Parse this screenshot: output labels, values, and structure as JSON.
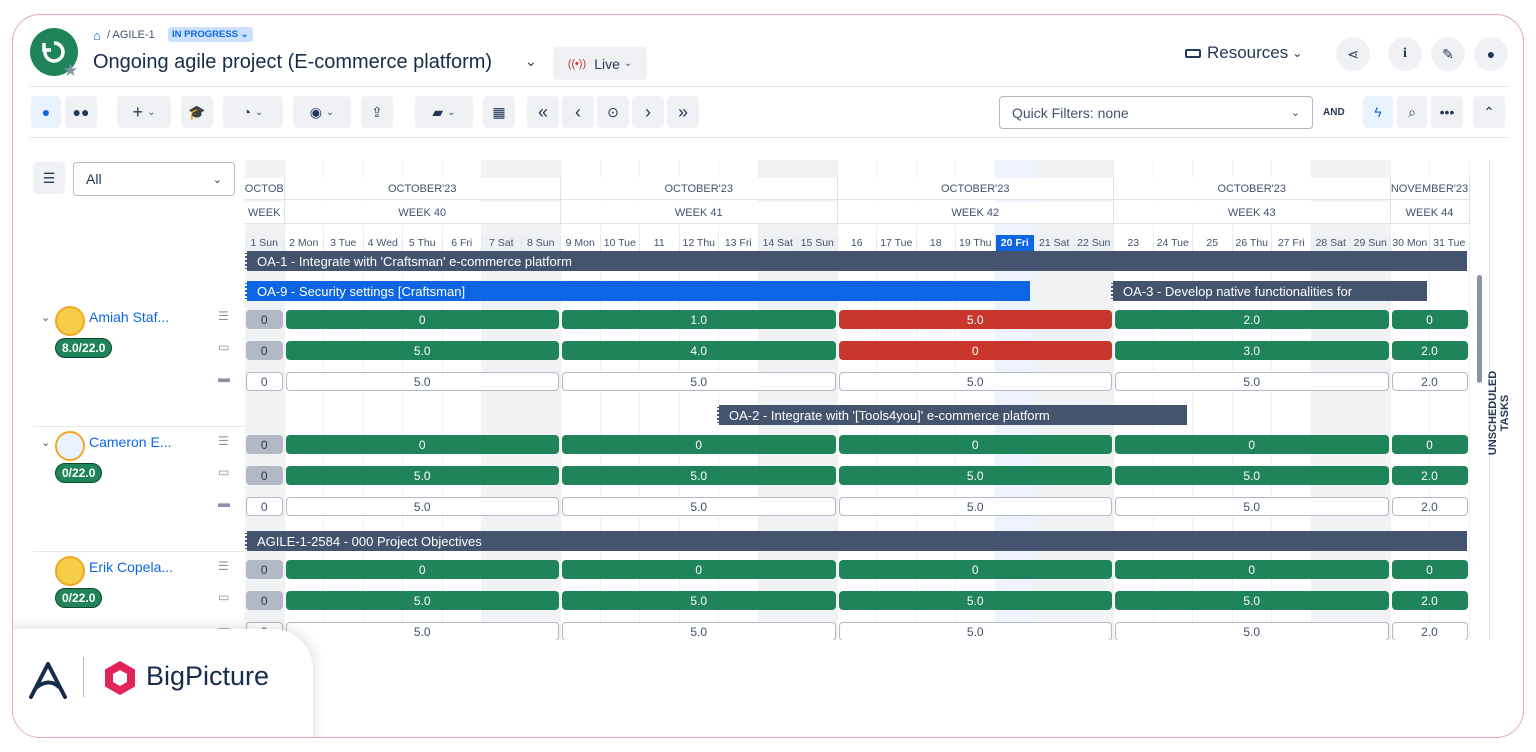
{
  "breadcrumb": {
    "project": "AGILE-1",
    "status": "IN PROGRESS"
  },
  "title": "Ongoing agile project (E-commerce platform)",
  "live": "Live",
  "resources": "Resources",
  "quick_filters": "Quick Filters: none",
  "and_label": "AND",
  "filter_select": "All",
  "unscheduled": "UNSCHEDULED TASKS",
  "brand": "BigPicture",
  "months": [
    {
      "label": "OCTOB"
    },
    {
      "label": "OCTOBER'23"
    },
    {
      "label": "OCTOBER'23"
    },
    {
      "label": "OCTOBER'23"
    },
    {
      "label": "OCTOBER'23"
    },
    {
      "label": "NOVEMBER'23"
    }
  ],
  "weeks": [
    {
      "label": "WEEK"
    },
    {
      "label": "WEEK 40"
    },
    {
      "label": "WEEK 41"
    },
    {
      "label": "WEEK 42"
    },
    {
      "label": "WEEK 43"
    },
    {
      "label": "WEEK 44"
    }
  ],
  "days": [
    "1 Sun",
    "2 Mon",
    "3 Tue",
    "4 Wed",
    "5 Thu",
    "6 Fri",
    "7 Sat",
    "8 Sun",
    "9 Mon",
    "10 Tue",
    "11",
    "12 Thu",
    "13 Fri",
    "14 Sat",
    "15 Sun",
    "16",
    "17 Tue",
    "18",
    "19 Thu",
    "20 Fri",
    "21 Sat",
    "22 Sun",
    "23",
    "24 Tue",
    "25",
    "26 Thu",
    "27 Fri",
    "28 Sat",
    "29 Sun",
    "30 Mon",
    "31 Tue"
  ],
  "tasks": {
    "oa1": "OA-1 - Integrate with 'Craftsman' e-commerce platform",
    "oa9": "OA-9 - Security settings [Craftsman]",
    "oa3": "OA-3 - Develop native functionalities for",
    "oa2": "OA-2 - Integrate with '[Tools4you]' e-commerce platform",
    "agile": "AGILE-1-2584 - 000 Project Objectives"
  },
  "users": [
    {
      "name": "Amiah Staf...",
      "capacity": "8.0/22.0",
      "rows": [
        [
          "0",
          "0",
          "1.0",
          "5.0",
          "2.0",
          "0"
        ],
        [
          "0",
          "5.0",
          "4.0",
          "0",
          "3.0",
          "2.0"
        ],
        [
          "0",
          "5.0",
          "5.0",
          "5.0",
          "5.0",
          "2.0"
        ]
      ]
    },
    {
      "name": "Cameron E...",
      "capacity": "0/22.0",
      "rows": [
        [
          "0",
          "0",
          "0",
          "0",
          "0",
          "0"
        ],
        [
          "0",
          "5.0",
          "5.0",
          "5.0",
          "5.0",
          "2.0"
        ],
        [
          "0",
          "5.0",
          "5.0",
          "5.0",
          "5.0",
          "2.0"
        ]
      ]
    },
    {
      "name": "Erik Copela...",
      "capacity": "0/22.0",
      "rows": [
        [
          "0",
          "0",
          "0",
          "0",
          "0",
          "0"
        ],
        [
          "0",
          "5.0",
          "5.0",
          "5.0",
          "5.0",
          "2.0"
        ],
        [
          "0",
          "5.0",
          "5.0",
          "5.0",
          "5.0",
          "2.0"
        ]
      ]
    }
  ],
  "colors": {
    "accent": "#0c66e4",
    "green": "#1f845a",
    "red": "#c9372c",
    "task": "#44546f"
  }
}
